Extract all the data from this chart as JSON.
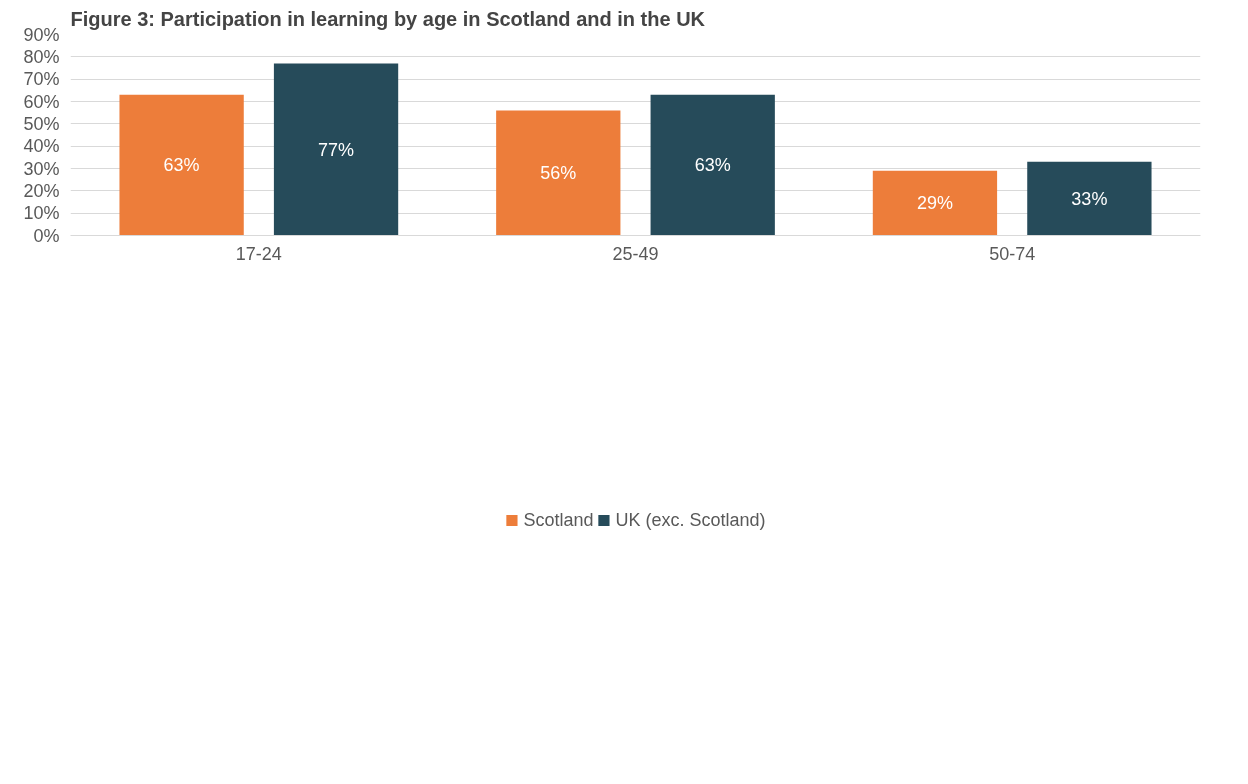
{
  "chart_data": {
    "type": "bar",
    "title": "Figure 3: Participation in learning by age in Scotland and in the UK",
    "categories": [
      "17-24",
      "25-49",
      "50-74"
    ],
    "series": [
      {
        "name": "Scotland",
        "color": "#ed7d3a",
        "values": [
          63,
          56,
          29
        ],
        "value_labels": [
          "63%",
          "56%",
          "29%"
        ]
      },
      {
        "name": "UK (exc. Scotland)",
        "color": "#264b5a",
        "values": [
          77,
          63,
          33
        ],
        "value_labels": [
          "77%",
          "63%",
          "33%"
        ]
      }
    ],
    "ylim": [
      0,
      90
    ],
    "yticks": [
      {
        "value": 0,
        "label": "0%"
      },
      {
        "value": 10,
        "label": "10%"
      },
      {
        "value": 20,
        "label": "20%"
      },
      {
        "value": 30,
        "label": "30%"
      },
      {
        "value": 40,
        "label": "40%"
      },
      {
        "value": 50,
        "label": "50%"
      },
      {
        "value": 60,
        "label": "60%"
      },
      {
        "value": 70,
        "label": "70%"
      },
      {
        "value": 80,
        "label": "80%"
      },
      {
        "value": 90,
        "label": "90%"
      }
    ],
    "grid": "y",
    "legend": "bottom"
  }
}
